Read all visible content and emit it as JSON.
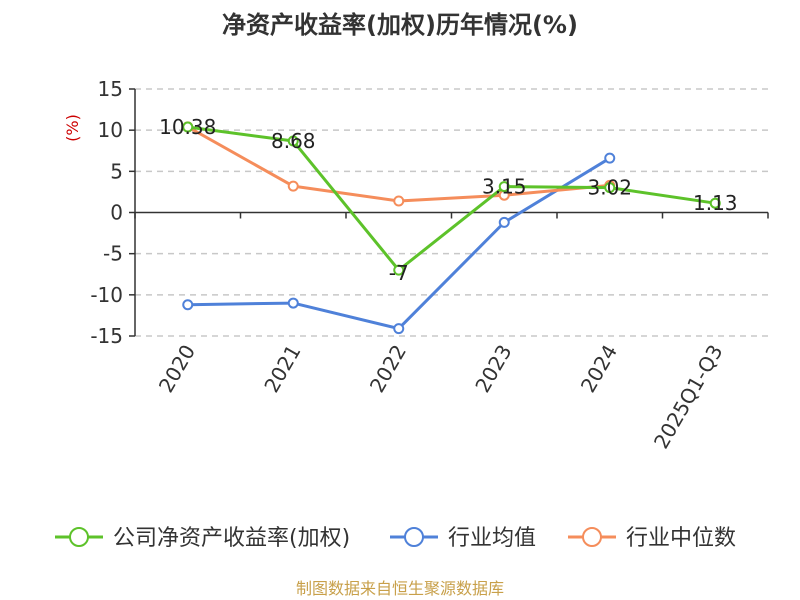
{
  "chart_data": {
    "type": "line",
    "title": "净资产收益率(加权)历年情况(%)",
    "ylabel": "(%)",
    "categories": [
      "2020",
      "2021",
      "2022",
      "2023",
      "2024",
      "2025Q1-Q3"
    ],
    "ylim": [
      -15,
      15
    ],
    "yticks": [
      15,
      10,
      5,
      0,
      -5,
      -10,
      -15
    ],
    "grid": true,
    "legend_position": "bottom",
    "series": [
      {
        "name": "公司净资产收益率(加权)",
        "color": "#5dc22a",
        "values": [
          10.38,
          8.68,
          -7,
          3.15,
          3.02,
          1.13
        ],
        "labels": [
          "10.38",
          "8.68",
          "-7",
          "3.15",
          "3.02",
          "1.13"
        ]
      },
      {
        "name": "行业均值",
        "color": "#4f81d9",
        "values": [
          -11.2,
          -11.0,
          -14.1,
          -1.2,
          6.6,
          null
        ]
      },
      {
        "name": "行业中位数",
        "color": "#f58d5b",
        "values": [
          10.4,
          3.2,
          1.4,
          2.1,
          3.3,
          null
        ]
      }
    ]
  },
  "source_text": "制图数据来自恒生聚源数据库"
}
